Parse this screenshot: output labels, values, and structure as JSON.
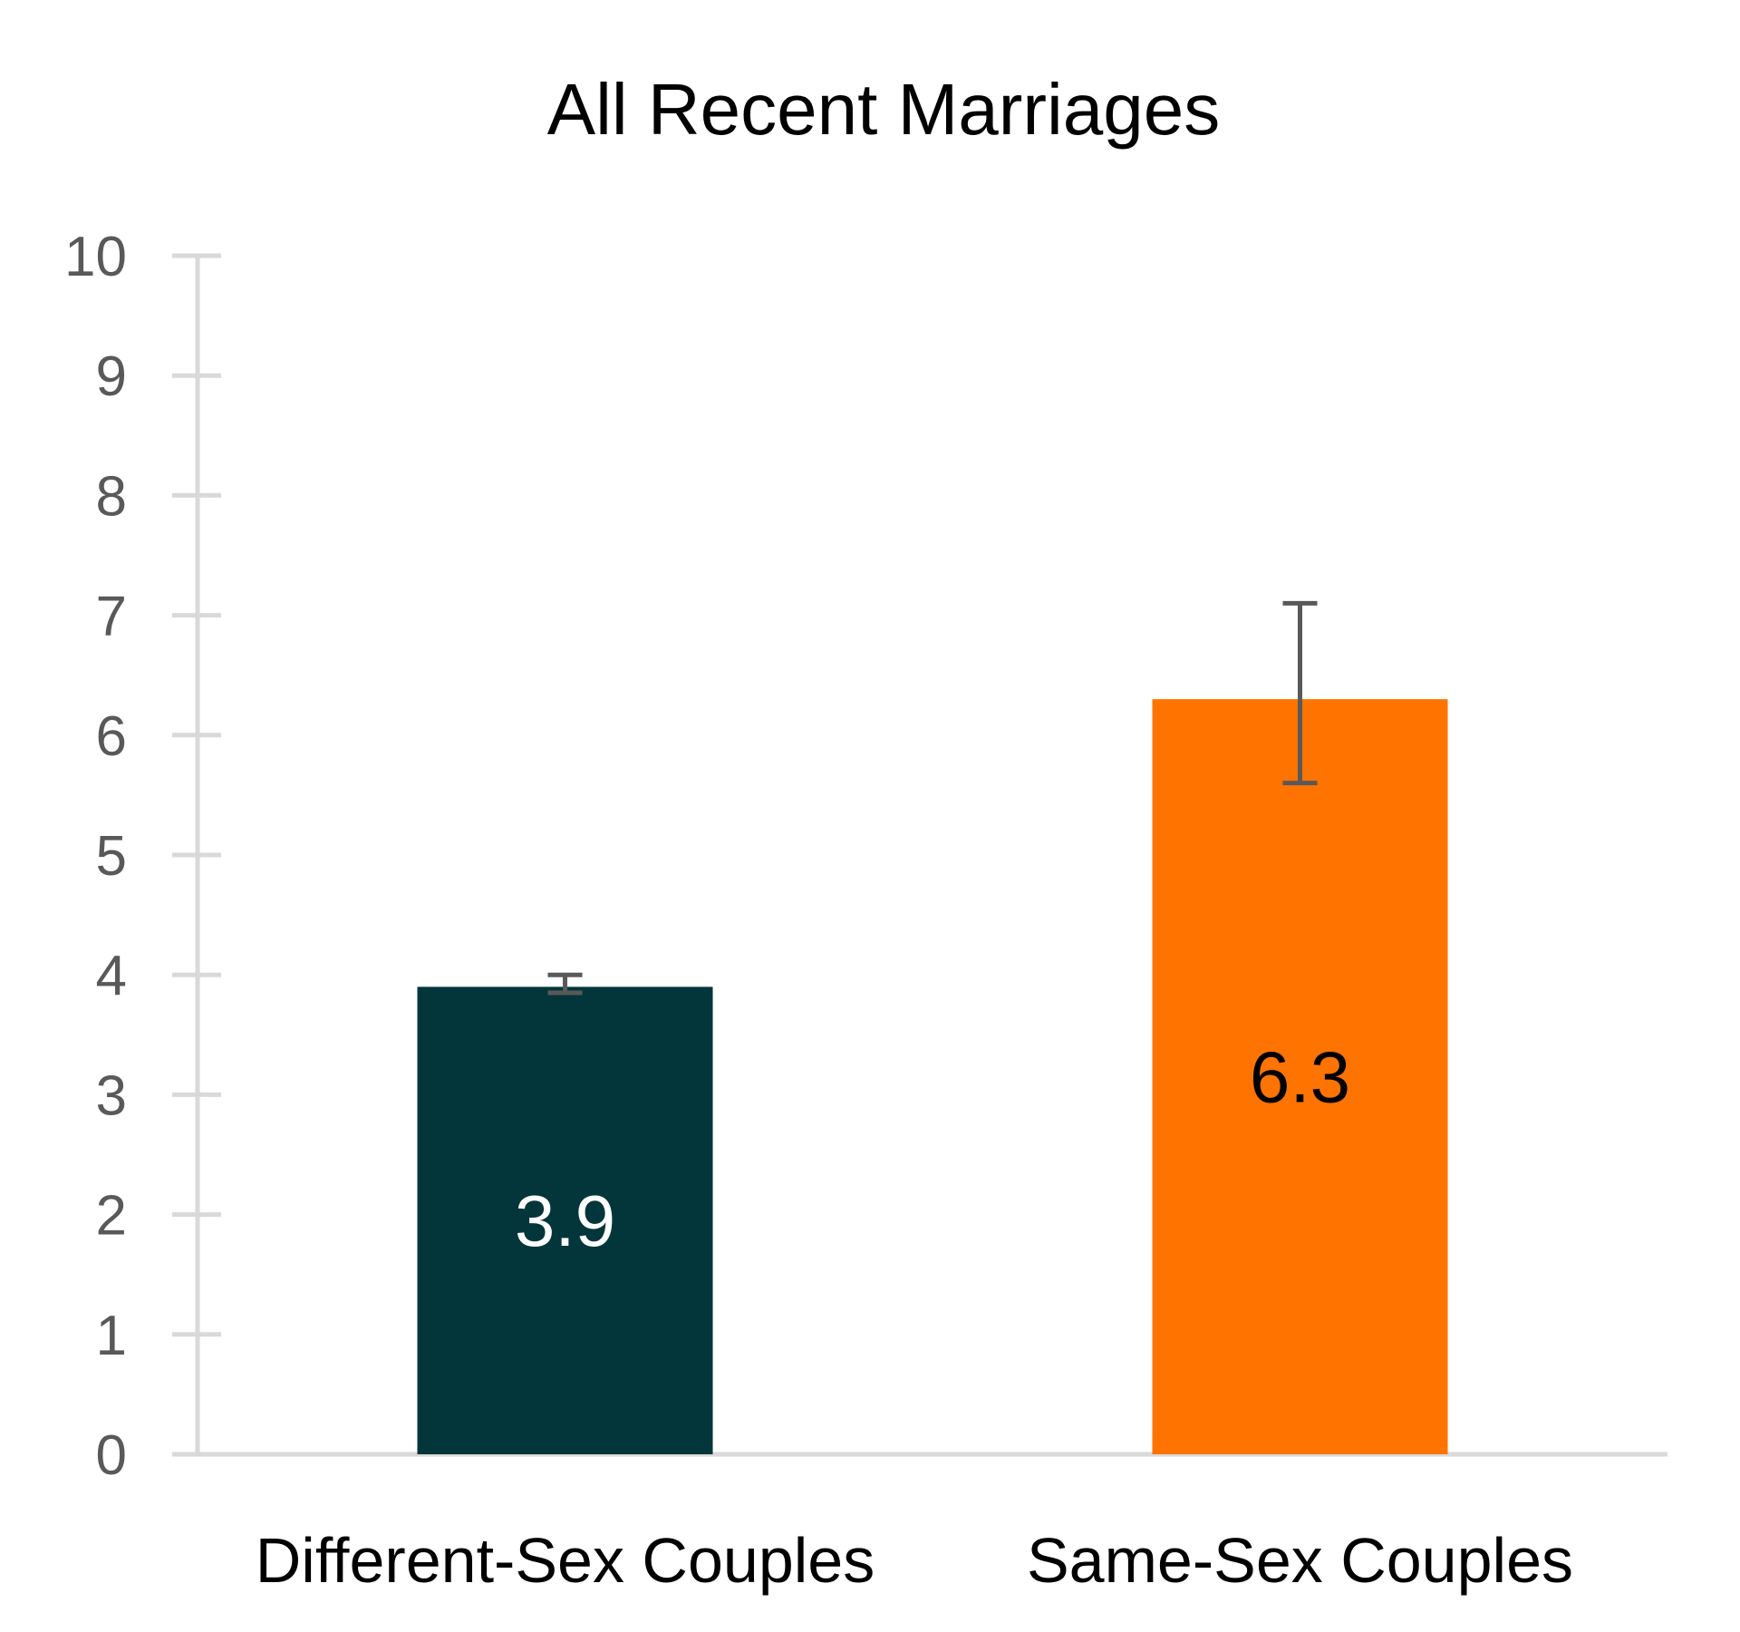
{
  "chart_data": {
    "type": "bar",
    "title": "All Recent Marriages",
    "xlabel": "",
    "ylabel": "",
    "ylim": [
      0,
      10
    ],
    "yticks": [
      "0",
      "1",
      "2",
      "3",
      "4",
      "5",
      "6",
      "7",
      "8",
      "9",
      "10"
    ],
    "categories": [
      "Different-Sex Couples",
      "Same-Sex Couples"
    ],
    "values": [
      3.9,
      6.3
    ],
    "data_labels": [
      "3.9",
      "6.3"
    ],
    "error_bars": [
      {
        "low": 3.85,
        "high": 4.0
      },
      {
        "low": 5.6,
        "high": 7.1
      }
    ],
    "bar_colors": [
      "#02363A",
      "#FF7300"
    ],
    "data_label_colors": [
      "#FFFFFF",
      "#000000"
    ],
    "axis_color": "#D9D9D9",
    "error_bar_color": "#595959",
    "grid": false,
    "legend": "none"
  }
}
